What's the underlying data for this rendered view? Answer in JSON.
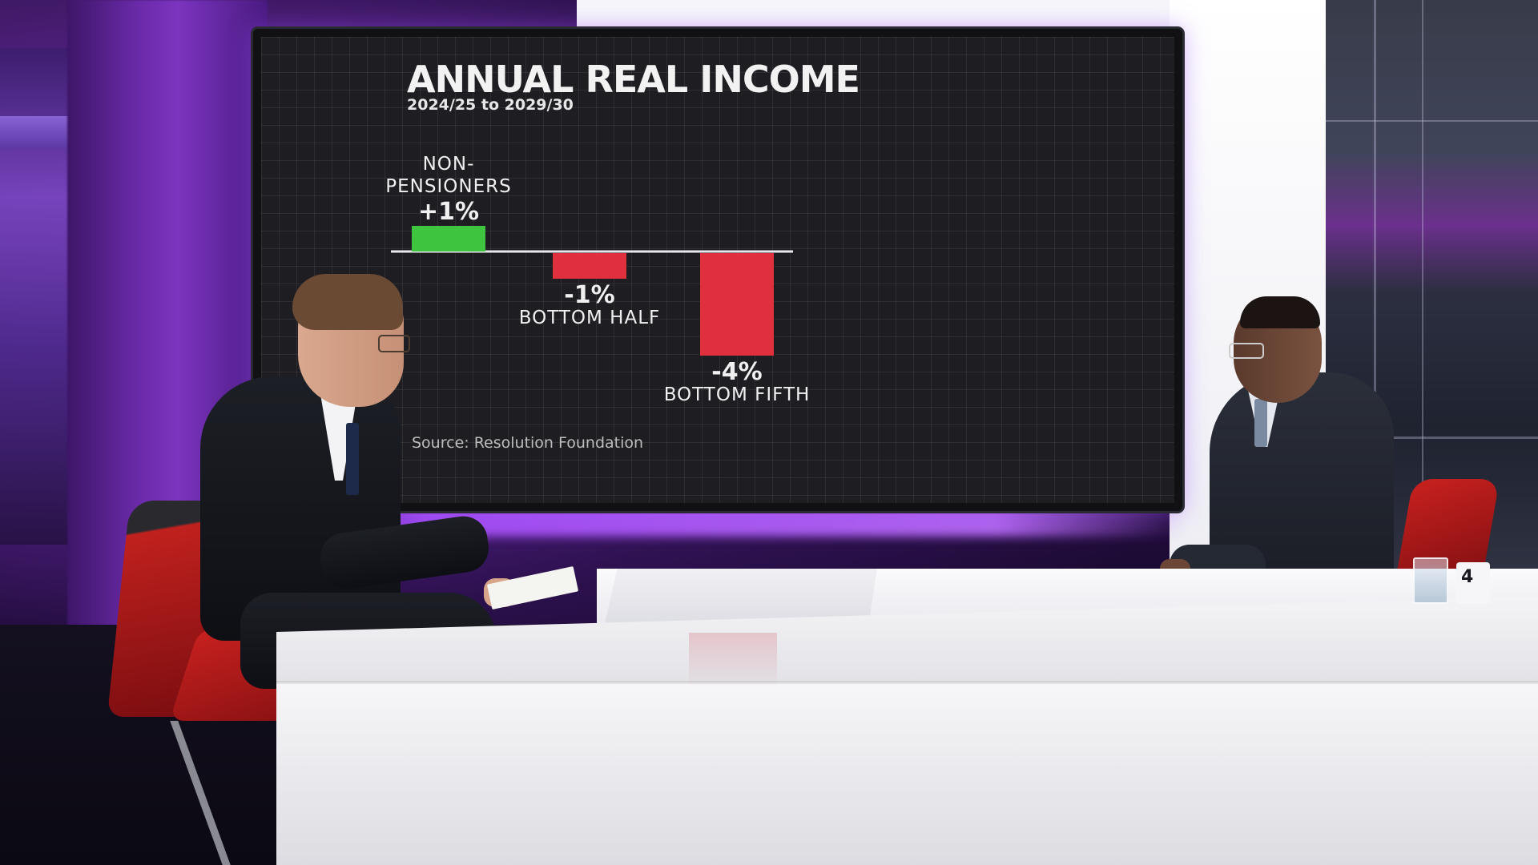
{
  "chart_data": {
    "type": "bar",
    "title": "ANNUAL REAL INCOME",
    "subtitle": "2024/25 to 2029/30",
    "categories": [
      "NON-PENSIONERS",
      "BOTTOM HALF",
      "BOTTOM FIFTH"
    ],
    "values": [
      1,
      -1,
      -4
    ],
    "value_labels": [
      "+1%",
      "-1%",
      "-4%"
    ],
    "ylim": [
      -4,
      1
    ],
    "source": "Source: Resolution Foundation",
    "colors": {
      "positive": "#3fc43f",
      "negative": "#e0303e"
    }
  },
  "mug_logo": "4"
}
